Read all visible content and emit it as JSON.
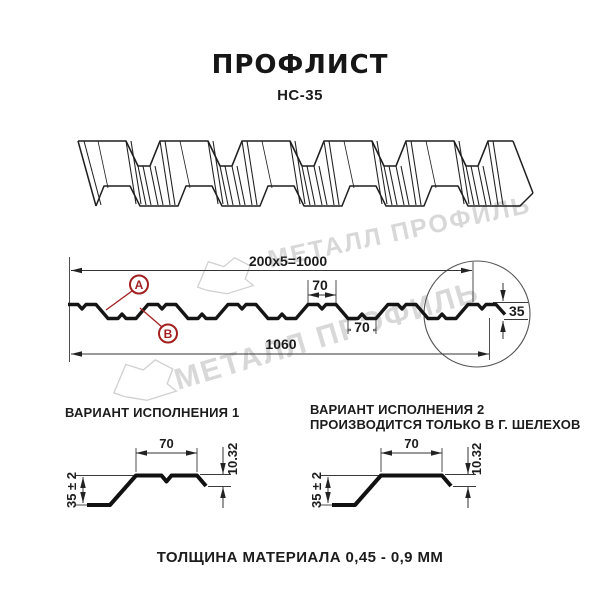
{
  "header": {
    "title": "ПРОФЛИСТ",
    "subtitle": "НС-35"
  },
  "watermark": {
    "text": "МЕТАЛЛ ПРОФИЛЬ",
    "color": "#d8d8d8"
  },
  "colors": {
    "accent_red": "#a32020",
    "line": "#1f1f1f"
  },
  "cross_section": {
    "dim_pitch_total": "200x5=1000",
    "dim_rib_top_width": "70",
    "dim_rib_bottom_width": "70",
    "dim_overall_width": "1060",
    "dim_height": "35",
    "label_a": "А",
    "label_b": "В"
  },
  "variant1": {
    "title": "ВАРИАНТ ИСПОЛНЕНИЯ 1",
    "dim_top_width": "70",
    "dim_height": "35 ± 2",
    "dim_step": "10.32"
  },
  "variant2": {
    "title_line1": "ВАРИАНТ ИСПОЛНЕНИЯ 2",
    "title_line2": "ПРОИЗВОДИТСЯ ТОЛЬКО В Г. ШЕЛЕХОВ",
    "dim_top_width": "70",
    "dim_height": "35 ± 2",
    "dim_step": "10.32"
  },
  "footer": {
    "material_thickness": "ТОЛЩИНА МАТЕРИАЛА 0,45 - 0,9 ММ"
  }
}
